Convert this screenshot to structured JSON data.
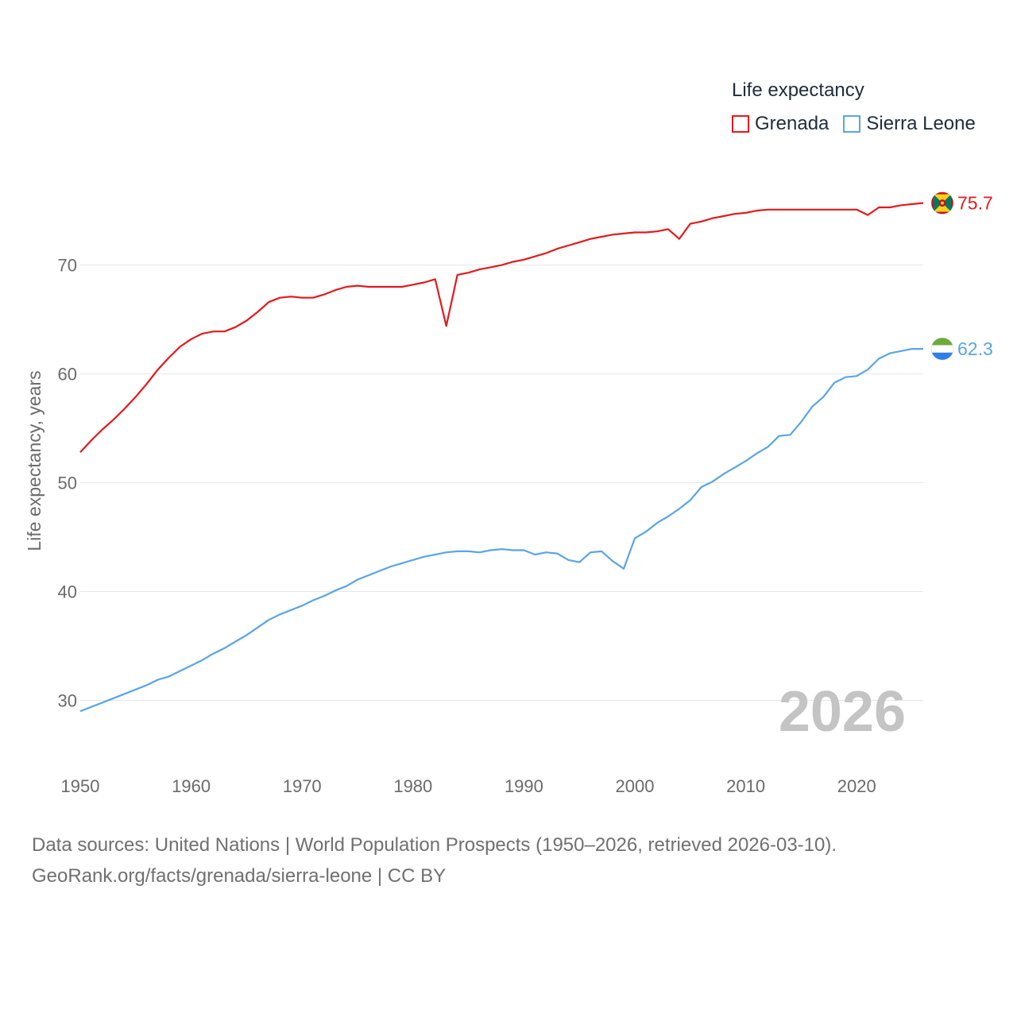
{
  "chart_data": {
    "type": "line",
    "title": "",
    "ylabel": "Life expectancy, years",
    "xlabel": "",
    "xlim": [
      1950,
      2026
    ],
    "ylim": [
      25,
      77.2
    ],
    "yticks": [
      30,
      40,
      50,
      60,
      70
    ],
    "xticks": [
      1950,
      1960,
      1970,
      1980,
      1990,
      2000,
      2010,
      2020
    ],
    "grid": true,
    "legend_position": "top-right",
    "legend_title": "Life expectancy",
    "current_year_label": "2026",
    "x": [
      1950,
      1951,
      1952,
      1953,
      1954,
      1955,
      1956,
      1957,
      1958,
      1959,
      1960,
      1961,
      1962,
      1963,
      1964,
      1965,
      1966,
      1967,
      1968,
      1969,
      1970,
      1971,
      1972,
      1973,
      1974,
      1975,
      1976,
      1977,
      1978,
      1979,
      1980,
      1981,
      1982,
      1983,
      1984,
      1985,
      1986,
      1987,
      1988,
      1989,
      1990,
      1991,
      1992,
      1993,
      1994,
      1995,
      1996,
      1997,
      1998,
      1999,
      2000,
      2001,
      2002,
      2003,
      2004,
      2005,
      2006,
      2007,
      2008,
      2009,
      2010,
      2011,
      2012,
      2013,
      2014,
      2015,
      2016,
      2017,
      2018,
      2019,
      2020,
      2021,
      2022,
      2023,
      2024,
      2025,
      2026
    ],
    "series": [
      {
        "name": "Grenada",
        "color": "#e31a1c",
        "end_label": "75.7",
        "flag": "grenada-flag",
        "values": [
          52.8,
          53.9,
          54.9,
          55.8,
          56.8,
          57.9,
          59.1,
          60.4,
          61.5,
          62.5,
          63.2,
          63.7,
          63.9,
          63.9,
          64.3,
          64.9,
          65.7,
          66.6,
          67.0,
          67.1,
          67.0,
          67.0,
          67.3,
          67.7,
          68.0,
          68.1,
          68.0,
          68.0,
          68.0,
          68.0,
          68.2,
          68.4,
          68.7,
          64.4,
          69.1,
          69.3,
          69.6,
          69.8,
          70.0,
          70.3,
          70.5,
          70.8,
          71.1,
          71.5,
          71.8,
          72.1,
          72.4,
          72.6,
          72.8,
          72.9,
          73.0,
          73.0,
          73.1,
          73.3,
          72.4,
          73.8,
          74.0,
          74.3,
          74.5,
          74.7,
          74.8,
          75.0,
          75.1,
          75.1,
          75.1,
          75.1,
          75.1,
          75.1,
          75.1,
          75.1,
          75.1,
          74.6,
          75.3,
          75.3,
          75.5,
          75.6,
          75.7
        ]
      },
      {
        "name": "Sierra Leone",
        "color": "#5aa5e6",
        "end_label": "62.3",
        "flag": "sierra-leone-flag",
        "values": [
          29.0,
          29.4,
          29.8,
          30.2,
          30.6,
          31.0,
          31.4,
          31.9,
          32.2,
          32.7,
          33.2,
          33.7,
          34.3,
          34.8,
          35.4,
          36.0,
          36.7,
          37.4,
          37.9,
          38.3,
          38.7,
          39.2,
          39.6,
          40.1,
          40.5,
          41.1,
          41.5,
          41.9,
          42.3,
          42.6,
          42.9,
          43.2,
          43.4,
          43.6,
          43.7,
          43.7,
          43.6,
          43.8,
          43.9,
          43.8,
          43.8,
          43.4,
          43.6,
          43.5,
          42.9,
          42.7,
          43.6,
          43.7,
          42.8,
          42.1,
          44.9,
          45.5,
          46.3,
          46.9,
          47.6,
          48.4,
          49.6,
          50.1,
          50.8,
          51.4,
          52.0,
          52.7,
          53.3,
          54.3,
          54.4,
          55.6,
          57.0,
          57.9,
          59.2,
          59.7,
          59.8,
          60.4,
          61.4,
          61.9,
          62.1,
          62.3,
          62.3
        ]
      }
    ]
  },
  "footer": {
    "line1": "Data sources: United Nations | World Population Prospects (1950–2026, retrieved 2026-03-10).",
    "line2": "GeoRank.org/facts/grenada/sierra-leone | CC BY"
  }
}
